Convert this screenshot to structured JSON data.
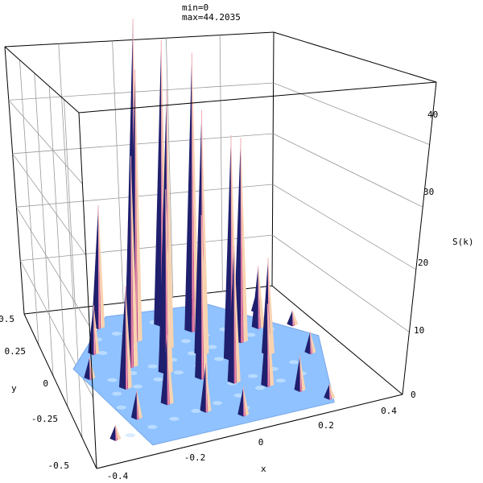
{
  "header": {
    "min_label": "min=0",
    "max_label": "max=44.2035"
  },
  "chart_data": {
    "type": "surface3d",
    "title": "",
    "xlabel": "x",
    "ylabel": "y",
    "zlabel": "S(k)",
    "xlim": [
      -0.5,
      0.5
    ],
    "ylim": [
      -0.5,
      0.5
    ],
    "zlim": [
      0,
      44.2035
    ],
    "x_ticks": [
      "-0.4",
      "-0.2",
      "0",
      "0.2",
      "0.4"
    ],
    "y_ticks": [
      "0.5",
      "0.25",
      "0",
      "-0.25",
      "-0.5"
    ],
    "z_ticks": [
      "0",
      "10",
      "20",
      "30",
      "40"
    ],
    "min": 0,
    "max": 44.2035,
    "base_shape": "hexagon",
    "peak_colors": [
      "#1f1f6e",
      "#c34a8e",
      "#f1aeb4",
      "#f8d3b0"
    ],
    "base_color": "#8fc2ff",
    "peaks": [
      {
        "x": -0.1,
        "y": 0.4,
        "z": 44
      },
      {
        "x": -0.02,
        "y": 0.32,
        "z": 42
      },
      {
        "x": 0.07,
        "y": 0.25,
        "z": 41
      },
      {
        "x": -0.15,
        "y": 0.24,
        "z": 40
      },
      {
        "x": -0.06,
        "y": 0.16,
        "z": 38
      },
      {
        "x": 0.04,
        "y": 0.08,
        "z": 36
      },
      {
        "x": 0.12,
        "y": 0.01,
        "z": 33
      },
      {
        "x": 0.2,
        "y": 0.12,
        "z": 30
      },
      {
        "x": -0.22,
        "y": 0.08,
        "z": 31
      },
      {
        "x": -0.12,
        "y": 0.0,
        "z": 27
      },
      {
        "x": -0.02,
        "y": -0.08,
        "z": 24
      },
      {
        "x": 0.07,
        "y": -0.15,
        "z": 20
      },
      {
        "x": -0.25,
        "y": 0.36,
        "z": 18
      },
      {
        "x": -0.28,
        "y": -0.05,
        "z": 15
      },
      {
        "x": 0.25,
        "y": 0.0,
        "z": 14
      },
      {
        "x": 0.16,
        "y": -0.22,
        "z": 12
      },
      {
        "x": -0.18,
        "y": -0.2,
        "z": 10
      },
      {
        "x": 0.3,
        "y": 0.2,
        "z": 9
      },
      {
        "x": -0.08,
        "y": -0.3,
        "z": 7
      },
      {
        "x": -0.32,
        "y": 0.2,
        "z": 7
      },
      {
        "x": 0.24,
        "y": -0.3,
        "z": 5
      },
      {
        "x": 0.02,
        "y": -0.38,
        "z": 4
      },
      {
        "x": -0.3,
        "y": -0.25,
        "z": 4
      },
      {
        "x": 0.38,
        "y": -0.05,
        "z": 3
      },
      {
        "x": 0.35,
        "y": 0.32,
        "z": 3
      },
      {
        "x": -0.38,
        "y": 0.05,
        "z": 3
      },
      {
        "x": 0.12,
        "y": 0.36,
        "z": 3
      },
      {
        "x": -0.4,
        "y": -0.35,
        "z": 2
      },
      {
        "x": 0.3,
        "y": -0.4,
        "z": 2
      },
      {
        "x": 0.42,
        "y": 0.18,
        "z": 2
      }
    ]
  }
}
